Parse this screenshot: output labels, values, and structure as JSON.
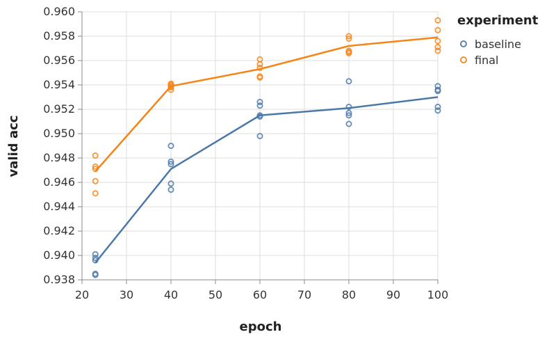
{
  "chart_data": {
    "type": "line",
    "x_field": "epoch",
    "xlabel": "epoch",
    "ylabel": "valid acc",
    "xlim": [
      20,
      100
    ],
    "ylim": [
      0.938,
      0.96
    ],
    "x_ticks": [
      20,
      30,
      40,
      50,
      60,
      70,
      80,
      90,
      100
    ],
    "x_tick_labels": [
      "20",
      "30",
      "40",
      "50",
      "60",
      "70",
      "80",
      "90",
      "100"
    ],
    "y_ticks": [
      0.938,
      0.94,
      0.942,
      0.944,
      0.946,
      0.948,
      0.95,
      0.952,
      0.954,
      0.956,
      0.958,
      0.96
    ],
    "y_tick_labels": [
      "0.938",
      "0.940",
      "0.942",
      "0.944",
      "0.946",
      "0.948",
      "0.950",
      "0.952",
      "0.954",
      "0.956",
      "0.958",
      "0.960"
    ],
    "grid": true,
    "legend": {
      "title": "experiment",
      "placement": "top-right",
      "entries": [
        "baseline",
        "final"
      ]
    },
    "series": [
      {
        "name": "baseline",
        "color": "#4c78a8",
        "line": {
          "x": [
            23,
            40,
            60,
            80,
            100
          ],
          "y": [
            0.9394,
            0.9471,
            0.9515,
            0.9521,
            0.953
          ]
        },
        "points": {
          "x": [
            23,
            23,
            23,
            23,
            23,
            40,
            40,
            40,
            40,
            40,
            60,
            60,
            60,
            60,
            60,
            80,
            80,
            80,
            80,
            80,
            100,
            100,
            100,
            100,
            100
          ],
          "y": [
            0.9385,
            0.9396,
            0.9398,
            0.9401,
            0.9384,
            0.949,
            0.9477,
            0.9475,
            0.9459,
            0.9454,
            0.9526,
            0.9523,
            0.9515,
            0.9514,
            0.9498,
            0.9543,
            0.9522,
            0.9517,
            0.9515,
            0.9508,
            0.9539,
            0.9536,
            0.9535,
            0.9522,
            0.9519
          ]
        }
      },
      {
        "name": "final",
        "color": "#f58518",
        "line": {
          "x": [
            23,
            40,
            60,
            80,
            100
          ],
          "y": [
            0.9469,
            0.9539,
            0.9553,
            0.9572,
            0.9579
          ]
        },
        "points": {
          "x": [
            23,
            23,
            23,
            23,
            23,
            40,
            40,
            40,
            40,
            40,
            60,
            60,
            60,
            60,
            60,
            80,
            80,
            80,
            80,
            80,
            100,
            100,
            100,
            100,
            100
          ],
          "y": [
            0.9482,
            0.9473,
            0.9471,
            0.9461,
            0.9451,
            0.9541,
            0.954,
            0.9539,
            0.9538,
            0.9536,
            0.9561,
            0.9557,
            0.9554,
            0.9547,
            0.9546,
            0.958,
            0.9578,
            0.9568,
            0.9567,
            0.9566,
            0.9593,
            0.9585,
            0.9576,
            0.9571,
            0.9568
          ]
        }
      }
    ]
  }
}
